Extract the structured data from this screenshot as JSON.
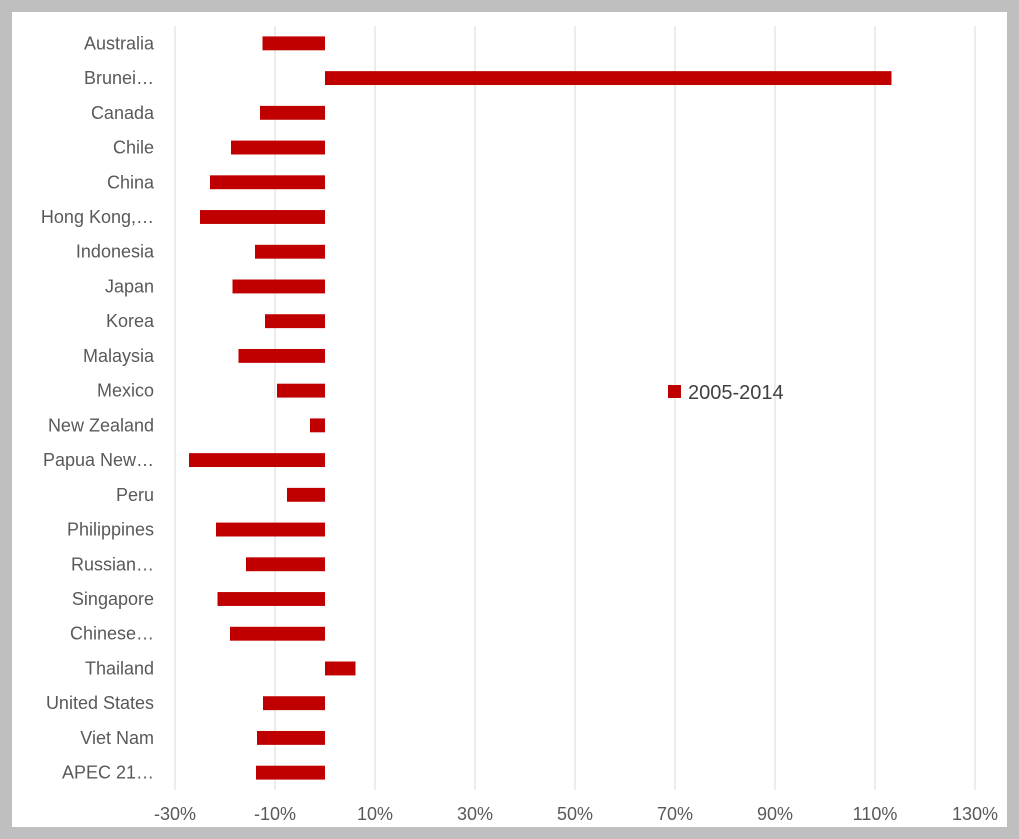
{
  "chart_data": {
    "type": "bar",
    "orientation": "horizontal",
    "categories": [
      "Australia",
      "Brunei…",
      "Canada",
      "Chile",
      "China",
      "Hong Kong,…",
      "Indonesia",
      "Japan",
      "Korea",
      "Malaysia",
      "Mexico",
      "New Zealand",
      "Papua New…",
      "Peru",
      "Philippines",
      "Russian…",
      "Singapore",
      "Chinese…",
      "Thailand",
      "United States",
      "Viet Nam",
      "APEC 21…"
    ],
    "series": [
      {
        "name": "2005-2014",
        "color": "#c00000",
        "values": [
          -12.5,
          113.3,
          -13.0,
          -18.8,
          -23.0,
          -25.0,
          -14.0,
          -18.5,
          -12.0,
          -17.3,
          -9.6,
          -3.0,
          -27.2,
          -7.6,
          -21.8,
          -15.8,
          -21.5,
          -19.0,
          6.1,
          -12.4,
          -13.6,
          -13.8
        ]
      }
    ],
    "xlim": [
      -30,
      130
    ],
    "xticks": [
      "-30%",
      "-10%",
      "10%",
      "30%",
      "50%",
      "70%",
      "90%",
      "110%",
      "130%"
    ],
    "grid": "vertical",
    "legend_position": "right-middle"
  }
}
